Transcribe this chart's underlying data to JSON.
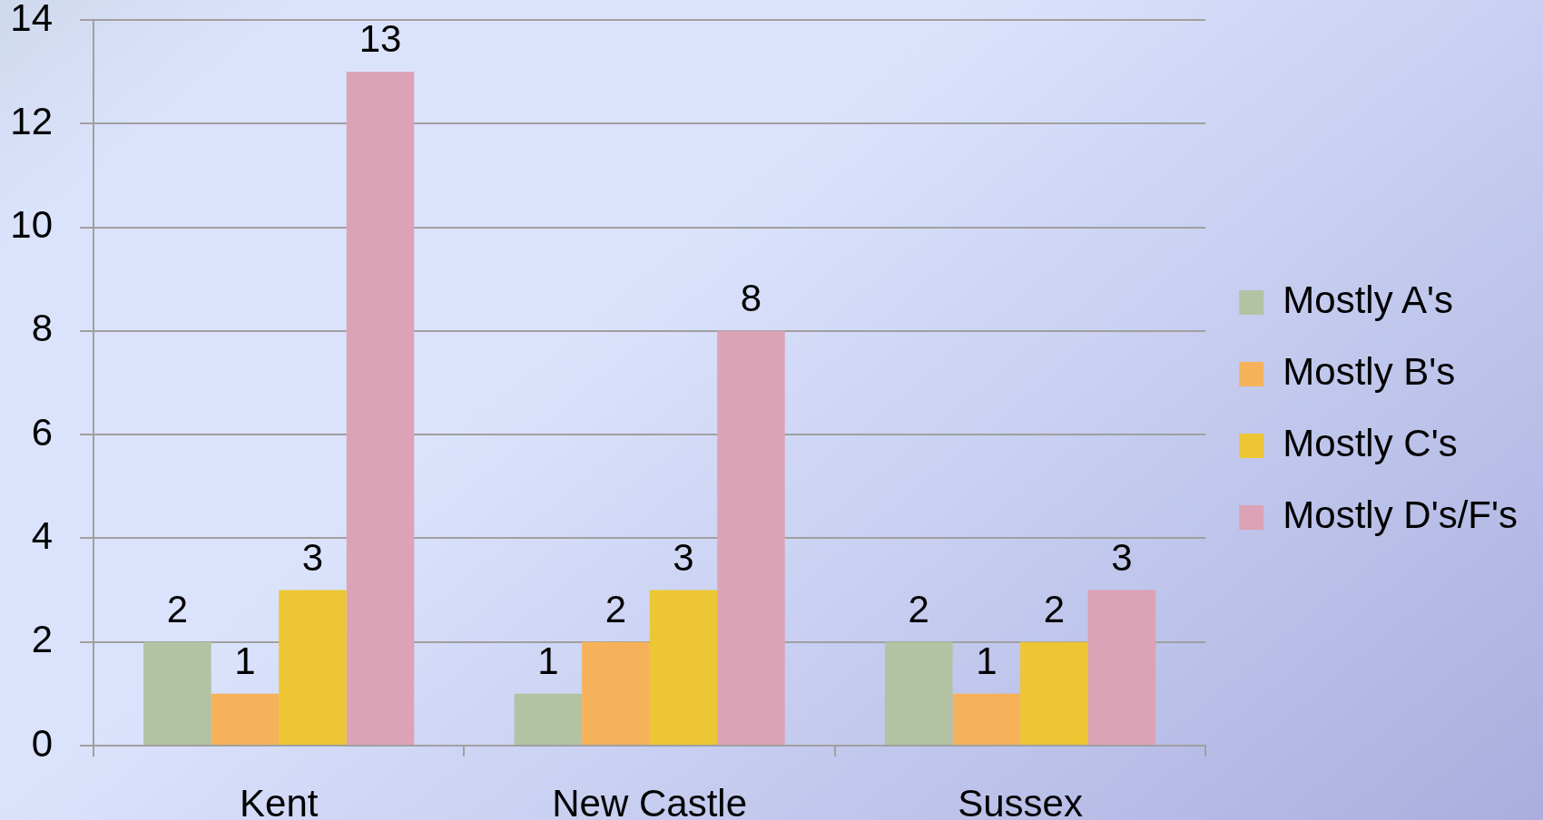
{
  "chart_data": {
    "type": "bar",
    "categories": [
      "Kent",
      "New Castle",
      "Sussex"
    ],
    "series": [
      {
        "name": "Mostly A's",
        "color": "#b3c2a2",
        "values": [
          2,
          1,
          2
        ]
      },
      {
        "name": "Mostly B's",
        "color": "#f5b25a",
        "values": [
          1,
          2,
          1
        ]
      },
      {
        "name": "Mostly C's",
        "color": "#ecc634",
        "values": [
          3,
          3,
          2
        ]
      },
      {
        "name": "Mostly D's/F's",
        "color": "#dca2b5",
        "values": [
          13,
          8,
          3
        ]
      }
    ],
    "ylim": [
      0,
      14
    ],
    "yticks": [
      0,
      2,
      4,
      6,
      8,
      10,
      12,
      14
    ],
    "grid": "y",
    "legend": "right",
    "data_labels": true
  }
}
